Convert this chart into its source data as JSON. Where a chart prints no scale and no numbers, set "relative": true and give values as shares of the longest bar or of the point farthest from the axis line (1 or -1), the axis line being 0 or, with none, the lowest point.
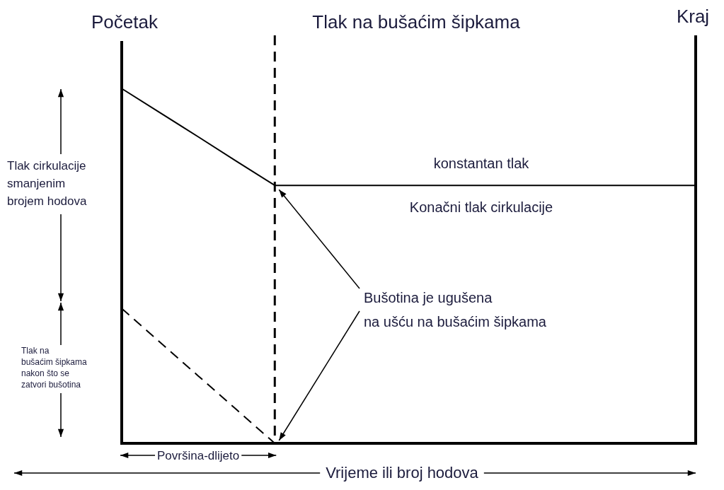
{
  "chart_data": {
    "type": "line",
    "relative": true,
    "title": "Tlak na bušaćim šipkama",
    "xlabel": "Vrijeme ili broj hodova",
    "categories": [
      null,
      null,
      null,
      null,
      null,
      null,
      null,
      null,
      null,
      null,
      null,
      null,
      null,
      null,
      null,
      null
    ],
    "series": [
      {
        "color": "#000000",
        "line_style": "solid",
        "values": [
          1,
          0.932,
          0.864,
          0.795,
          0.727,
          0.727,
          0.727,
          0.727,
          0.727,
          0.727,
          0.727,
          0.727,
          0.727,
          0.727,
          0.727,
          0.727
        ]
      },
      {
        "color": "#000000",
        "line_style": "dashed",
        "values": [
          0.38,
          0.285,
          0.19,
          0.095,
          0,
          null,
          null,
          null,
          null,
          null,
          null,
          null,
          null,
          null,
          null,
          null
        ]
      }
    ],
    "grid": false,
    "legend": false,
    "marker": "none",
    "annotations": [
      "Početak",
      "Kraj",
      "konstantan tlak",
      "Konačni tlak cirkulacije",
      "Bušotina je ugušena\nna ušću na bušaćim šipkama",
      "Tlak cirkulacije\nsmanjenim\nbrojem hodova",
      "Tlak na\nbušaćim šipkama\nnakon što se\nzatvori bušotina",
      "Površina-dlijeto"
    ]
  }
}
